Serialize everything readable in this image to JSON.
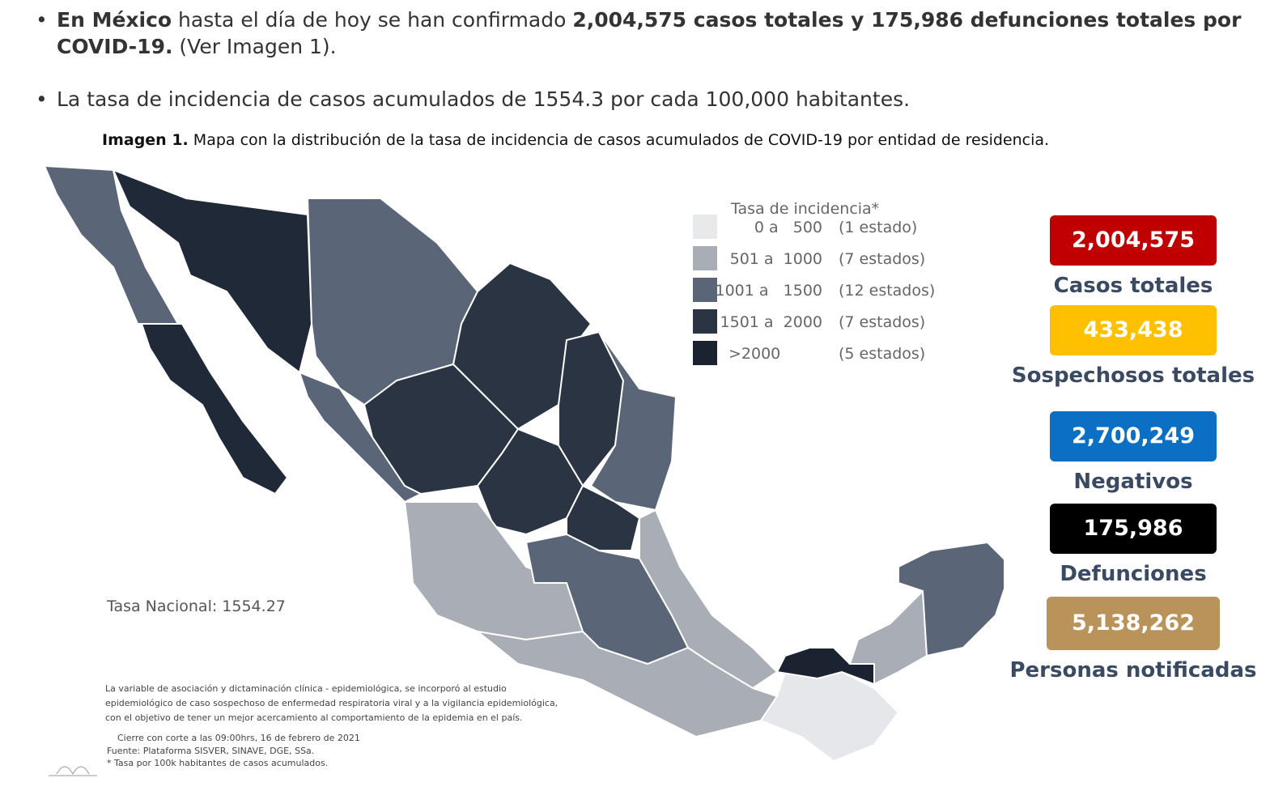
{
  "bullets": [
    {
      "lead": "En México",
      "text": " hasta el día de hoy se han confirmado ",
      "emphasis": "2,004,575 casos totales y 175,986 defunciones totales por COVID-19.",
      "tail": " (Ver Imagen 1)."
    },
    {
      "text": "La tasa de incidencia de casos acumulados de 1554.3 por cada 100,000 habitantes."
    }
  ],
  "caption": {
    "label": "Imagen 1.",
    "text": " Mapa con la distribución de la tasa de incidencia de casos acumulados de COVID-19 por entidad de residencia."
  },
  "legend": {
    "title": "Tasa de incidencia*",
    "rows": [
      {
        "range": "0 a   500",
        "count": "(1 estado)"
      },
      {
        "range": "501 a  1000",
        "count": "(7 estados)"
      },
      {
        "range": "1001 a   1500",
        "count": "(12 estados)"
      },
      {
        "range": "1501 a  2000",
        "count": "(7 estados)"
      },
      {
        "range": ">2000",
        "count": "(5 estados)"
      }
    ]
  },
  "national_rate": "Tasa Nacional: 1554.27",
  "footnote": [
    "La variable de asociación y dictaminación clínica - epidemiológica, se incorporó al estudio",
    "epidemiológico de caso sospechoso de enfermedad respiratoria viral y a la vigilancia epidemiológica,",
    "con el objetivo de tener un mejor acercamiento al comportamiento de la epidemia en el país.",
    "Cierre con corte a las 09:00hrs, 16 de febrero de 2021",
    "Fuente: Plataforma SISVER, SINAVE, DGE, SSa.",
    "* Tasa por 100k habitantes de casos acumulados."
  ],
  "stats": [
    {
      "value": "2,004,575",
      "label": "Casos totales"
    },
    {
      "value": "433,438",
      "label": "Sospechosos totales"
    },
    {
      "value": "2,700,249",
      "label": "Negativos"
    },
    {
      "value": "175,986",
      "label": "Defunciones"
    },
    {
      "value": "5,138,262",
      "label": "Personas notificadas"
    }
  ]
}
